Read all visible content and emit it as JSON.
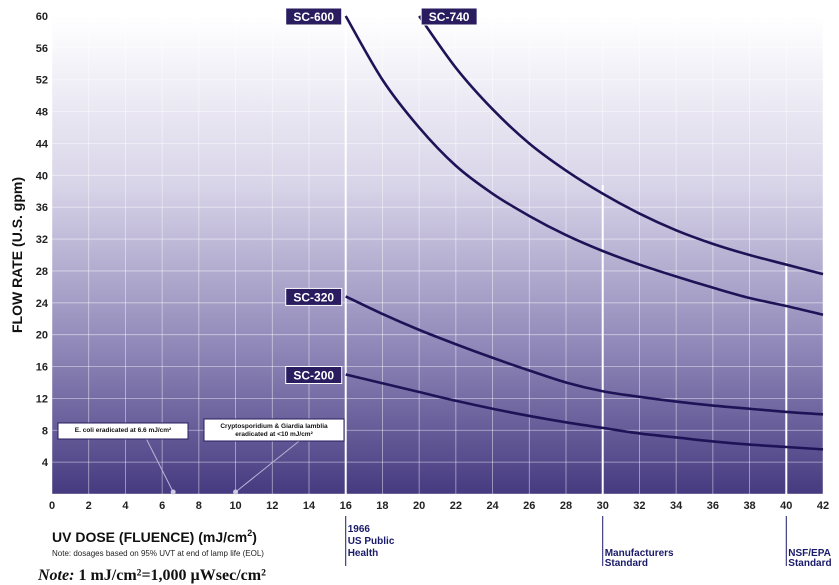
{
  "chart_data": {
    "type": "line",
    "xlabel_main": "UV DOSE (FLUENCE) (mJ/cm",
    "xlabel_sup": "2",
    "xlabel_end": ")",
    "xnote": "Note: dosages based on 95% UVT at end of lamp life (EOL)",
    "ylabel": "FLOW RATE (U.S. gpm)",
    "xlim": [
      0,
      42
    ],
    "ylim": [
      0,
      60
    ],
    "xticks": [
      0,
      2,
      4,
      6,
      8,
      10,
      12,
      14,
      16,
      18,
      20,
      22,
      24,
      26,
      28,
      30,
      32,
      34,
      36,
      38,
      40,
      42
    ],
    "yticks": [
      4,
      8,
      12,
      16,
      20,
      24,
      28,
      32,
      36,
      40,
      44,
      48,
      52,
      56,
      60
    ],
    "grid": true,
    "series": [
      {
        "name": "SC-740",
        "x": [
          20,
          22,
          24,
          26,
          28,
          30,
          32,
          34,
          36,
          38,
          40,
          42
        ],
        "y": [
          60,
          53.5,
          48.3,
          44.0,
          40.6,
          37.7,
          35.2,
          33.1,
          31.4,
          30.0,
          28.8,
          27.6
        ]
      },
      {
        "name": "SC-600",
        "x": [
          16,
          18,
          20,
          22,
          24,
          26,
          28,
          30,
          32,
          34,
          36,
          38,
          40,
          42
        ],
        "y": [
          60,
          52.0,
          46.0,
          41.2,
          37.7,
          34.9,
          32.5,
          30.5,
          28.8,
          27.3,
          25.9,
          24.6,
          23.6,
          22.5
        ]
      },
      {
        "name": "SC-320",
        "x": [
          16,
          18,
          20,
          22,
          24,
          26,
          28,
          30,
          32,
          34,
          36,
          38,
          40,
          42
        ],
        "y": [
          24.8,
          22.6,
          20.6,
          18.8,
          17.1,
          15.5,
          14.0,
          12.9,
          12.2,
          11.6,
          11.1,
          10.7,
          10.3,
          10.0
        ]
      },
      {
        "name": "SC-200",
        "x": [
          16,
          18,
          20,
          22,
          24,
          26,
          28,
          30,
          32,
          34,
          36,
          38,
          40,
          42
        ],
        "y": [
          15.0,
          13.9,
          12.8,
          11.7,
          10.7,
          9.8,
          9.0,
          8.3,
          7.6,
          7.1,
          6.6,
          6.2,
          5.9,
          5.6
        ]
      }
    ],
    "standards": [
      {
        "x": 16,
        "lines": [
          "1966",
          "US Public",
          "Health"
        ]
      },
      {
        "x": 30,
        "lines": [
          "Manufacturers",
          "Standard"
        ]
      },
      {
        "x": 40,
        "lines": [
          "NSF/EPA",
          "Standard"
        ]
      }
    ],
    "annotations": [
      {
        "text_lines": [
          "E. coli eradicated at 6.6 mJ/cm²"
        ],
        "x": 6.6
      },
      {
        "text_lines": [
          "Cryptosporidium & Giardia lamblia",
          "eradicated at <10 mJ/cm²"
        ],
        "x": 10
      }
    ],
    "note_italic": "Note:",
    "note_rest": " 1 mJ/cm²=1,000 µWsec/cm²",
    "colors": {
      "bg_top": "#ffffff",
      "bg_bottom": "#4a3f82",
      "curve": "#1f1357",
      "badge": "#2a1c5e",
      "grid": "#ffffff"
    }
  }
}
